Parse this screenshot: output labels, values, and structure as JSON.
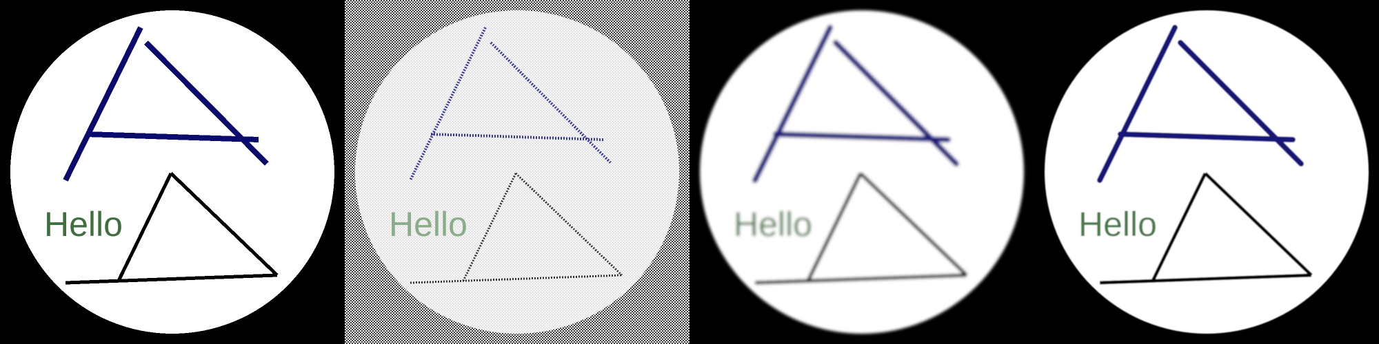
{
  "panels": [
    {
      "style": "pixelated",
      "label": "Hello",
      "colors": {
        "background": "#000000",
        "circle": "#ffffff",
        "a_stroke": "#0b0b6e",
        "triangle_stroke": "#000000",
        "text": "#3f6f3f"
      }
    },
    {
      "style": "dithered",
      "label": "Hello",
      "colors": {
        "background": "#9a9a9a",
        "circle": "#f2f2f2",
        "a_stroke": "#3a3a9a",
        "triangle_stroke": "#333333",
        "text": "#7aa07a"
      }
    },
    {
      "style": "blurred",
      "label": "Hello",
      "colors": {
        "background": "#000000",
        "circle": "#ffffff",
        "a_stroke": "#1a1a7e",
        "triangle_stroke": "#000000",
        "text": "#4a7a4a"
      }
    },
    {
      "style": "smooth",
      "label": "Hello",
      "colors": {
        "background": "#000000",
        "circle": "#ffffff",
        "a_stroke": "#141478",
        "triangle_stroke": "#000000",
        "text": "#4a7a4a"
      }
    }
  ]
}
